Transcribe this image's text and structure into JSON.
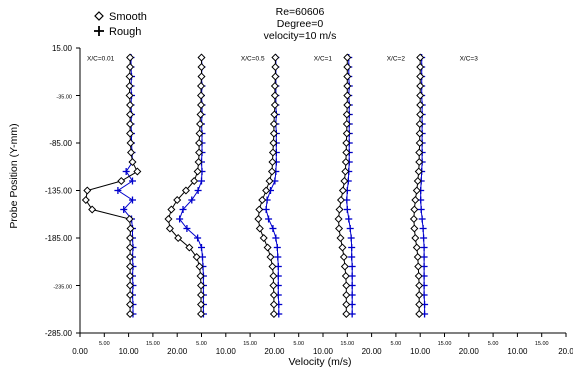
{
  "chart_data": {
    "type": "line",
    "title_lines": [
      "Re=60606",
      "Degree=0",
      "velocity=10 m/s"
    ],
    "xlabel": "Velocity (m/s)",
    "ylabel": "Probe Position (Y-mm)",
    "ylim": [
      -285,
      15
    ],
    "y_ticks": [
      "15.00",
      "-35.00",
      "-85.00",
      "-135.00",
      "-185.00",
      "-235.00",
      "-285.00"
    ],
    "y_tick_values": [
      15,
      -35,
      -85,
      -135,
      -185,
      -235,
      -285
    ],
    "y_tick_major": [
      true,
      false,
      true,
      true,
      true,
      false,
      true
    ],
    "x_ticks": [
      {
        "label": "0.00",
        "major": true
      },
      {
        "label": "5.00",
        "major": false
      },
      {
        "label": "10.00",
        "major": true
      },
      {
        "label": "15.00",
        "major": false
      },
      {
        "label": "20.00",
        "major": true
      },
      {
        "label": "5.00",
        "major": false
      },
      {
        "label": "10.00",
        "major": true
      },
      {
        "label": "15.00",
        "major": false
      },
      {
        "label": "20.00",
        "major": true
      },
      {
        "label": "5.00",
        "major": false
      },
      {
        "label": "10.00",
        "major": true
      },
      {
        "label": "15.00",
        "major": false
      },
      {
        "label": "20.00",
        "major": true
      },
      {
        "label": "5.00",
        "major": false
      },
      {
        "label": "10.00",
        "major": true
      },
      {
        "label": "15.00",
        "major": false
      },
      {
        "label": "20.00",
        "major": true
      },
      {
        "label": "5.00",
        "major": false
      },
      {
        "label": "10.00",
        "major": true
      },
      {
        "label": "15.00",
        "major": false
      },
      {
        "label": "20.0",
        "major": true
      }
    ],
    "legend": {
      "position": "top-left",
      "entries": [
        {
          "name": "Smooth",
          "marker": "diamond",
          "color": "#000000"
        },
        {
          "name": "Rough",
          "marker": "plus",
          "color": "#000000"
        }
      ]
    },
    "colors": {
      "smooth": "#000000",
      "rough": "#0000cc"
    },
    "y_positions": [
      5,
      -5,
      -15,
      -25,
      -35,
      -45,
      -55,
      -65,
      -75,
      -85,
      -95,
      -105,
      -115,
      -125,
      -135,
      -145,
      -155,
      -165,
      -175,
      -185,
      -195,
      -205,
      -215,
      -225,
      -235,
      -245,
      -255,
      -265
    ],
    "stations": [
      {
        "label": "X/C=0.01",
        "x_offset": 0,
        "smooth_x": [
          10.3,
          10.3,
          10.2,
          10.2,
          10.2,
          10.3,
          10.3,
          10.3,
          10.3,
          10.4,
          10.5,
          10.8,
          11.8,
          8.5,
          1.5,
          1.2,
          2.5,
          10.2,
          10.4,
          10.3,
          10.3,
          10.3,
          10.3,
          10.3,
          10.3,
          10.3,
          10.3,
          10.3
        ],
        "rough_x": [
          10.5,
          10.5,
          10.6,
          10.5,
          10.6,
          10.5,
          10.6,
          10.5,
          10.6,
          10.6,
          10.7,
          10.8,
          9.5,
          10.8,
          7.8,
          10.8,
          9.0,
          10.6,
          10.8,
          10.8,
          10.9,
          10.8,
          10.9,
          10.8,
          10.9,
          10.8,
          10.9,
          10.9
        ]
      },
      {
        "label": "X/C=0.5",
        "x_offset": 15,
        "smooth_x": [
          10.0,
          10.0,
          10.0,
          9.9,
          9.9,
          9.9,
          9.8,
          9.7,
          9.6,
          9.5,
          9.5,
          9.4,
          9.2,
          8.5,
          6.8,
          5.0,
          3.8,
          3.2,
          3.5,
          5.2,
          7.5,
          9.0,
          9.6,
          9.8,
          9.9,
          9.9,
          9.9,
          9.9
        ],
        "rough_x": [
          10.0,
          10.1,
          10.0,
          10.1,
          10.0,
          10.1,
          10.1,
          10.0,
          10.1,
          10.1,
          10.1,
          10.0,
          10.1,
          10.0,
          9.3,
          8.0,
          6.2,
          5.5,
          7.0,
          9.2,
          10.0,
          10.2,
          10.3,
          10.4,
          10.4,
          10.4,
          10.4,
          10.4
        ]
      },
      {
        "label": "X/C=1",
        "x_offset": 30,
        "smooth_x": [
          10.2,
          10.2,
          10.2,
          10.1,
          10.1,
          10.1,
          10.0,
          9.9,
          9.9,
          9.8,
          9.7,
          9.6,
          9.5,
          9.0,
          8.3,
          7.5,
          6.9,
          6.7,
          7.0,
          7.8,
          8.6,
          9.2,
          9.6,
          9.8,
          9.8,
          9.9,
          9.9,
          9.9
        ],
        "rough_x": [
          10.3,
          10.3,
          10.3,
          10.3,
          10.3,
          10.3,
          10.4,
          10.3,
          10.4,
          10.4,
          10.4,
          10.4,
          10.3,
          10.1,
          9.2,
          8.5,
          8.3,
          8.8,
          9.7,
          10.3,
          10.6,
          10.7,
          10.8,
          10.8,
          10.8,
          10.8,
          10.9,
          10.9
        ]
      },
      {
        "label": "X/C=2",
        "x_offset": 45,
        "smooth_x": [
          10.0,
          10.0,
          10.0,
          10.0,
          10.0,
          10.0,
          9.9,
          9.9,
          9.9,
          9.8,
          9.8,
          9.7,
          9.6,
          9.4,
          9.1,
          8.7,
          8.4,
          8.2,
          8.3,
          8.6,
          9.0,
          9.3,
          9.5,
          9.7,
          9.8,
          9.8,
          9.8,
          9.8
        ],
        "rough_x": [
          10.3,
          10.3,
          10.3,
          10.4,
          10.3,
          10.4,
          10.4,
          10.4,
          10.4,
          10.4,
          10.4,
          10.4,
          10.3,
          10.2,
          10.0,
          9.9,
          10.0,
          10.3,
          10.6,
          10.8,
          10.9,
          10.9,
          11.0,
          11.0,
          11.0,
          11.0,
          11.0,
          11.0
        ]
      },
      {
        "label": "X/C=3",
        "x_offset": 60,
        "smooth_x": [
          10.0,
          10.0,
          10.0,
          10.0,
          10.0,
          10.0,
          10.0,
          9.9,
          9.9,
          9.9,
          9.8,
          9.8,
          9.7,
          9.5,
          9.3,
          9.0,
          8.8,
          8.7,
          8.8,
          9.0,
          9.3,
          9.5,
          9.6,
          9.7,
          9.8,
          9.8,
          9.8,
          9.8
        ],
        "rough_x": [
          10.3,
          10.3,
          10.3,
          10.3,
          10.3,
          10.4,
          10.4,
          10.4,
          10.4,
          10.4,
          10.4,
          10.4,
          10.3,
          10.2,
          10.1,
          10.1,
          10.2,
          10.4,
          10.6,
          10.7,
          10.8,
          10.8,
          10.8,
          10.8,
          10.8,
          10.8,
          10.9,
          10.9
        ]
      }
    ]
  }
}
